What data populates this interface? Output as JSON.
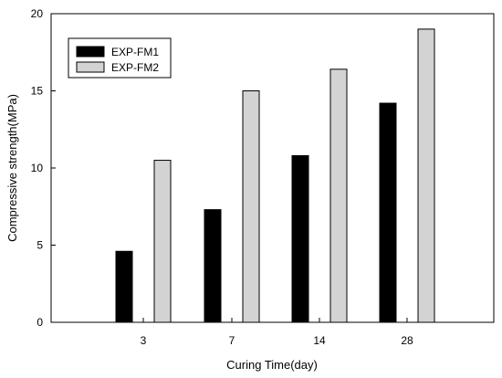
{
  "chart_data": {
    "type": "bar",
    "title": "",
    "xlabel": "Curing Time(day)",
    "ylabel": "Compressive strength(MPa)",
    "categories": [
      "3",
      "7",
      "14",
      "28"
    ],
    "series": [
      {
        "name": "EXP-FM1",
        "values": [
          4.6,
          7.3,
          10.8,
          14.2
        ],
        "color": "#000000"
      },
      {
        "name": "EXP-FM2",
        "values": [
          10.5,
          15.0,
          16.4,
          19.0
        ],
        "color": "#d3d3d3"
      }
    ],
    "ylim": [
      0,
      20
    ],
    "yticks": [
      0,
      5,
      10,
      15,
      20
    ],
    "grid": false,
    "legend_position": "top-left"
  }
}
